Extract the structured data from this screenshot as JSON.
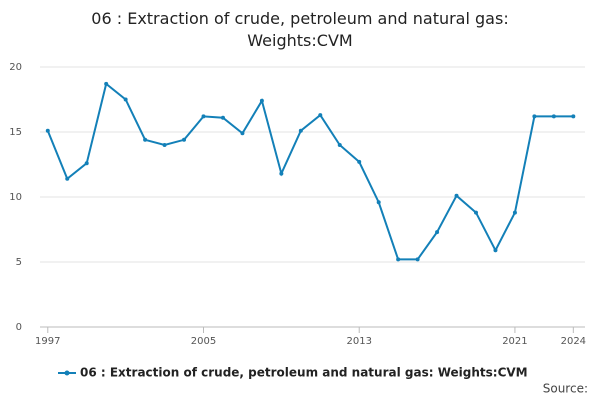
{
  "chart_data": {
    "type": "line",
    "title": "06 : Extraction of crude, petroleum and natural gas: Weights:CVM",
    "x": [
      1997,
      1998,
      1999,
      2000,
      2001,
      2002,
      2003,
      2004,
      2005,
      2006,
      2007,
      2008,
      2009,
      2010,
      2011,
      2012,
      2013,
      2014,
      2015,
      2016,
      2017,
      2018,
      2019,
      2020,
      2021,
      2022,
      2023,
      2024
    ],
    "series": [
      {
        "name": "06 : Extraction of crude, petroleum and natural gas: Weights:CVM",
        "color": "#1380b8",
        "values": [
          15.1,
          11.4,
          12.6,
          18.7,
          17.5,
          14.4,
          14.0,
          14.4,
          16.2,
          16.1,
          14.9,
          17.4,
          11.8,
          15.1,
          16.3,
          14.0,
          12.7,
          9.6,
          5.2,
          5.2,
          7.3,
          10.1,
          8.8,
          5.9,
          8.8,
          16.2,
          16.2,
          16.2
        ]
      }
    ],
    "xlim": [
      1996.6,
      2024.6
    ],
    "xticks": [
      1997,
      2005,
      2013,
      2021,
      2024
    ],
    "ylim": [
      0,
      20
    ],
    "yticks": [
      0,
      5,
      10,
      15,
      20
    ],
    "grid": true,
    "legend": "bottom",
    "source": "Source:"
  }
}
